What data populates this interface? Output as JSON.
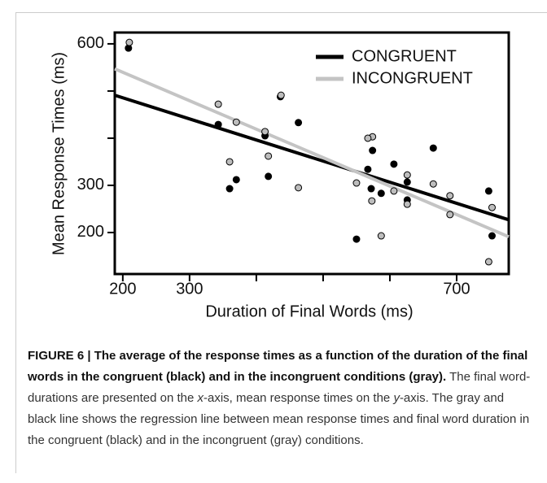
{
  "chart_data": {
    "type": "scatter",
    "x_label": "Duration of Final Words (ms)",
    "y_label": "Mean Response Times (ms)",
    "xlim": [
      188,
      778
    ],
    "ylim": [
      112,
      624
    ],
    "xticks": [
      200,
      300,
      700
    ],
    "xticks_unlabeled": [
      400,
      500,
      600
    ],
    "yticks": [
      200,
      300,
      600
    ],
    "yticks_unlabeled": [
      400,
      500
    ],
    "legend": "top-right",
    "series": [
      {
        "name": "CONGRUENT",
        "color": "#000000",
        "line_color": "#000000",
        "x": [
          208.5,
          343,
          370,
          360,
          418,
          413,
          436,
          463,
          574,
          567,
          572,
          587,
          606,
          626,
          626,
          665,
          550,
          748,
          753
        ],
        "y": [
          591,
          429,
          312,
          293,
          319,
          405,
          488,
          433,
          374,
          334,
          293,
          283,
          345,
          269,
          307,
          379,
          186,
          288,
          193
        ],
        "fit_x": [
          188,
          778
        ],
        "fit_y": [
          491,
          227
        ]
      },
      {
        "name": "INCONGRUENT",
        "color": "#bdbdbd",
        "line_color": "#c4c4c4",
        "x": [
          209.8,
          343,
          370,
          360,
          418,
          413,
          437,
          463,
          574,
          550,
          567,
          573,
          587,
          606,
          626,
          626,
          665,
          690,
          690,
          753,
          748
        ],
        "y": [
          603,
          472,
          434,
          350,
          362,
          414,
          491,
          295,
          403,
          305,
          400,
          267,
          193,
          288,
          322,
          260,
          303,
          278,
          238,
          253,
          138
        ],
        "fit_x": [
          188,
          778
        ],
        "fit_y": [
          547,
          191
        ]
      }
    ]
  },
  "caption": {
    "bold": "FIGURE 6 | The average of the response times as a function of the duration of the final words in the congruent (black) and in the incongruent conditions (gray).",
    "parts": [
      " The final word-durations are presented on the ",
      "x",
      "-axis, mean response times on the ",
      "y",
      "-axis. The gray and black line shows the regression line between mean response times and final word duration in the congruent (black) and in the incongruent (gray) conditions."
    ]
  }
}
